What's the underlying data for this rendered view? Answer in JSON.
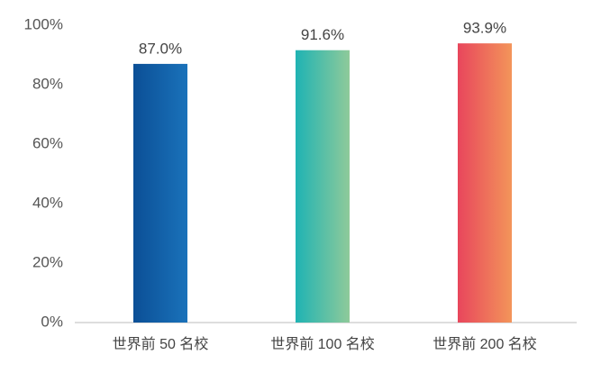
{
  "chart_data": {
    "type": "bar",
    "categories": [
      "世界前 50 名校",
      "世界前 100 名校",
      "世界前 200 名校"
    ],
    "values": [
      87.0,
      91.6,
      93.9
    ],
    "value_labels": [
      "87.0%",
      "91.6%",
      "93.9%"
    ],
    "colors": [
      [
        "#0b4f96",
        "#1a72ba"
      ],
      [
        "#1fb3b3",
        "#8fca9a"
      ],
      [
        "#e8465c",
        "#f3955a"
      ]
    ],
    "ylim": [
      0,
      100
    ],
    "yticks": [
      {
        "value": 0,
        "label": "0%"
      },
      {
        "value": 20,
        "label": "20%"
      },
      {
        "value": 40,
        "label": "40%"
      },
      {
        "value": 60,
        "label": "60%"
      },
      {
        "value": 80,
        "label": "80%"
      },
      {
        "value": 100,
        "label": "100%"
      }
    ],
    "grid": false
  }
}
